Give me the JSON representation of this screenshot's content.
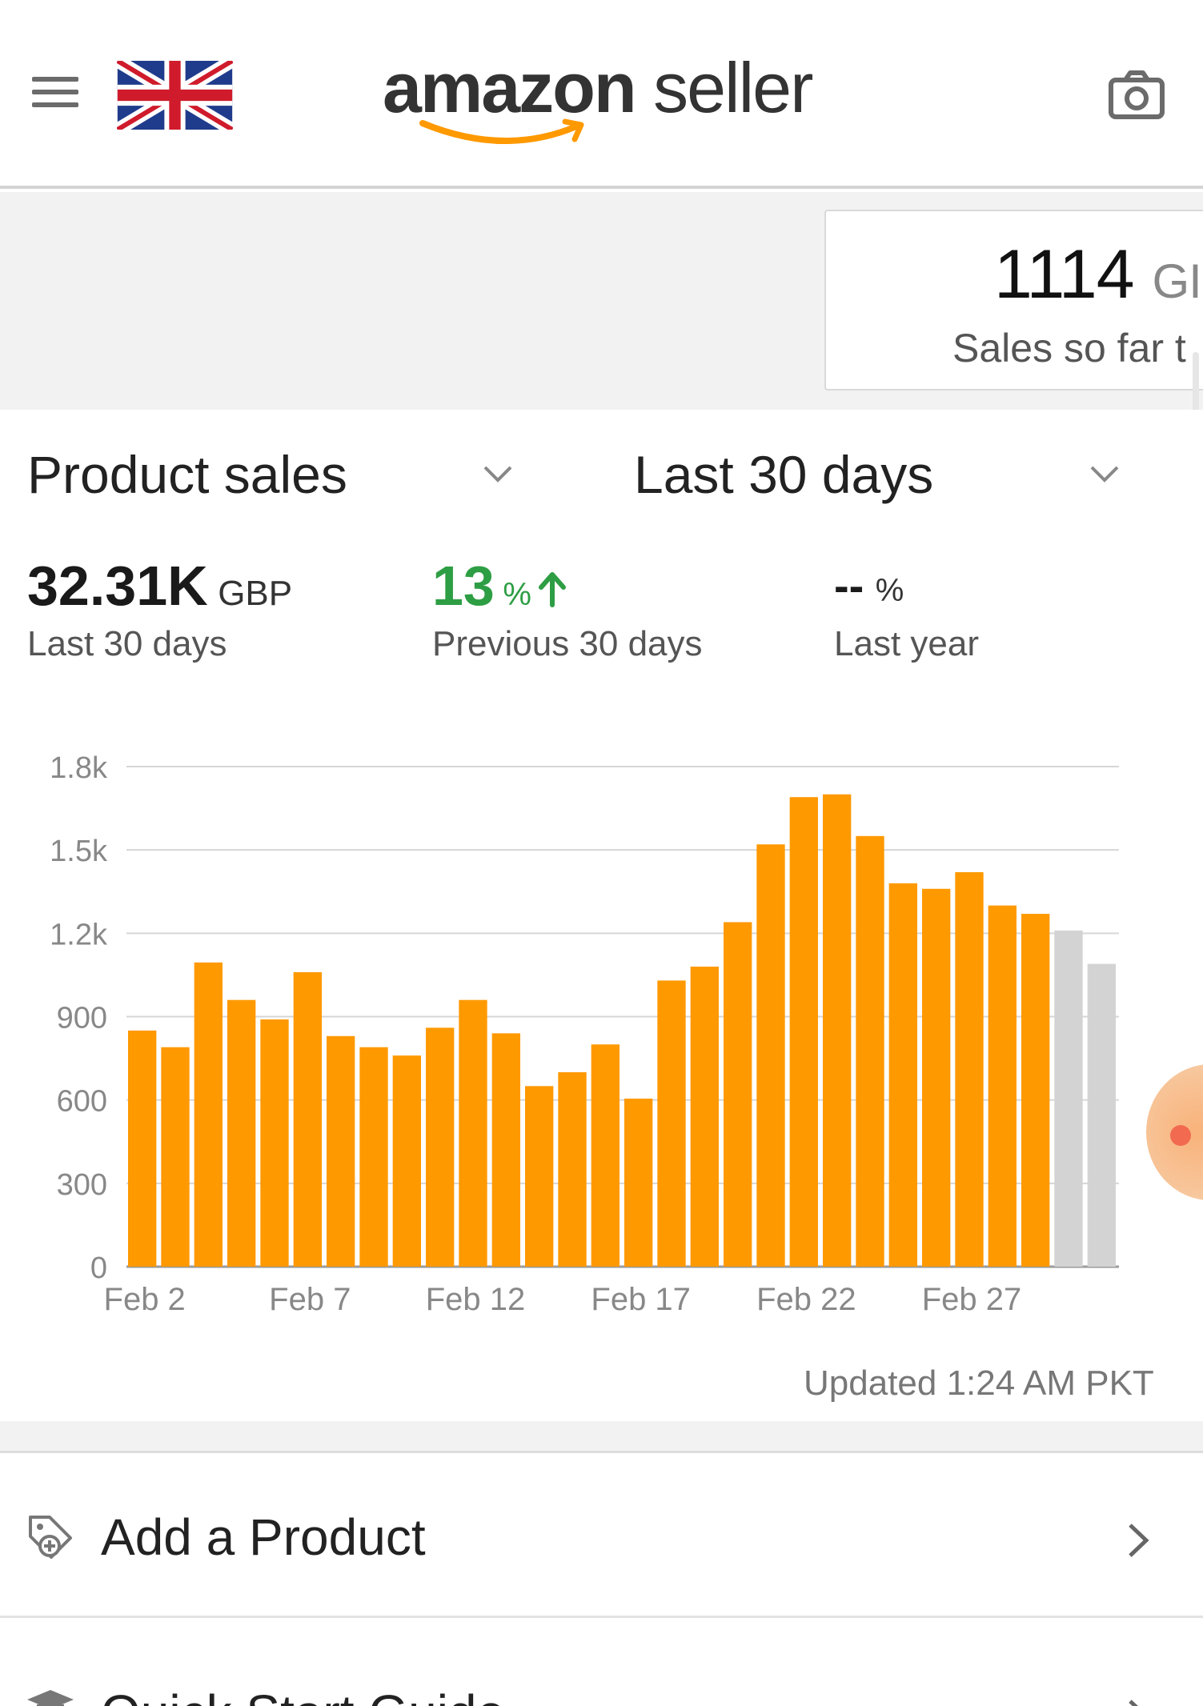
{
  "header": {
    "menu_icon": "hamburger-menu-icon",
    "flag_icon": "uk-flag-icon",
    "logo_brand": "amazon",
    "logo_sub": "seller",
    "camera_icon": "camera-icon"
  },
  "sales_card": {
    "value": "1114",
    "currency": "GI",
    "label": "Sales so far t"
  },
  "filters": {
    "metric": "Product sales",
    "period": "Last 30 days"
  },
  "metrics": [
    {
      "value": "32.31K",
      "unit": "GBP",
      "label": "Last 30 days"
    },
    {
      "value": "13",
      "unit": "%",
      "trend": "up",
      "label": "Previous 30 days",
      "color": "#2e9e44"
    },
    {
      "value": "--",
      "unit": "%",
      "label": "Last year"
    }
  ],
  "chart_data": {
    "type": "bar",
    "y_ticks": [
      "0",
      "300",
      "600",
      "900",
      "1.2k",
      "1.5k",
      "1.8k"
    ],
    "ylim": [
      0,
      1800
    ],
    "x_tick_labels": [
      "Feb 2",
      "Feb 7",
      "Feb 12",
      "Feb 17",
      "Feb 22",
      "Feb 27"
    ],
    "values": [
      850,
      790,
      1095,
      960,
      890,
      1060,
      830,
      790,
      760,
      860,
      960,
      840,
      650,
      700,
      800,
      605,
      1030,
      1080,
      1240,
      1520,
      1690,
      1700,
      1550,
      1380,
      1360,
      1420,
      1300,
      1270,
      1210,
      1090
    ],
    "bar_colors": [
      "#ff9900",
      "#ff9900",
      "#ff9900",
      "#ff9900",
      "#ff9900",
      "#ff9900",
      "#ff9900",
      "#ff9900",
      "#ff9900",
      "#ff9900",
      "#ff9900",
      "#ff9900",
      "#ff9900",
      "#ff9900",
      "#ff9900",
      "#ff9900",
      "#ff9900",
      "#ff9900",
      "#ff9900",
      "#ff9900",
      "#ff9900",
      "#ff9900",
      "#ff9900",
      "#ff9900",
      "#ff9900",
      "#ff9900",
      "#ff9900",
      "#ff9900",
      "#d3d3d3",
      "#d3d3d3"
    ],
    "grid": true
  },
  "updated_text": "Updated 1:24 AM PKT",
  "list": [
    {
      "label": "Add a Product",
      "icon": "tag-add-icon"
    },
    {
      "label": "Quick Start Guide",
      "icon": "graduation-cap-icon"
    }
  ]
}
